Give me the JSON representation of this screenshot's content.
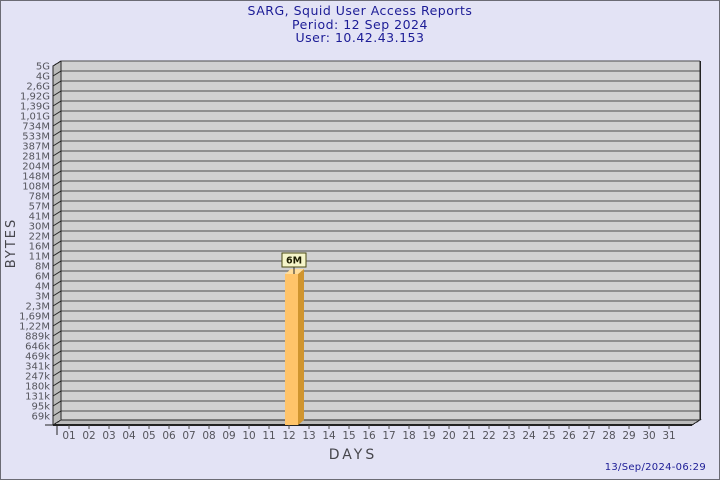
{
  "header": {
    "title": "SARG, Squid User Access Reports",
    "period": "Period: 12 Sep 2024",
    "user": "User: 10.42.43.153"
  },
  "footer": {
    "generated": "13/Sep/2024-06:29"
  },
  "colors": {
    "background": "#e3e3f5",
    "border": "#6b6b74",
    "title_text": "#1c1c96",
    "timestamp_text": "#1c1c96",
    "axis_label_text": "#46464c",
    "tick_label_text": "#55555c",
    "plot_bg": "#d1d1d1",
    "wall_bg": "#bbbbbb",
    "grid_line": "#4d4d4d",
    "frame_line": "#232323",
    "bar_front": "#ffc46a",
    "bar_side": "#d0952f",
    "bar_top": "#ffdd9b",
    "value_box_bg": "#f5f5c9",
    "value_box_border": "#4c4c14",
    "value_text": "#1c1c00"
  },
  "chart_data": {
    "type": "bar",
    "title": "SARG, Squid User Access Reports",
    "subtitle": [
      "Period: 12 Sep 2024",
      "User: 10.42.43.153"
    ],
    "xlabel": "DAYS",
    "ylabel": "BYTES",
    "y_scale": "logarithmic",
    "legend": "none",
    "x_categories": [
      "01",
      "02",
      "03",
      "04",
      "05",
      "06",
      "07",
      "08",
      "09",
      "10",
      "11",
      "12",
      "13",
      "14",
      "15",
      "16",
      "17",
      "18",
      "19",
      "20",
      "21",
      "22",
      "23",
      "24",
      "25",
      "26",
      "27",
      "28",
      "29",
      "30",
      "31"
    ],
    "y_tick_labels_top_to_bottom": [
      "5G",
      "4G",
      "2,6G",
      "1,92G",
      "1,39G",
      "1,01G",
      "734M",
      "533M",
      "387M",
      "281M",
      "204M",
      "148M",
      "108M",
      "78M",
      "57M",
      "41M",
      "30M",
      "22M",
      "16M",
      "11M",
      "8M",
      "6M",
      "4M",
      "3M",
      "2,3M",
      "1,69M",
      "1,22M",
      "889k",
      "646k",
      "469k",
      "341k",
      "247k",
      "180k",
      "131k",
      "95k",
      "69k"
    ],
    "bars": [
      {
        "day": "12",
        "value_label": "6M"
      }
    ]
  }
}
